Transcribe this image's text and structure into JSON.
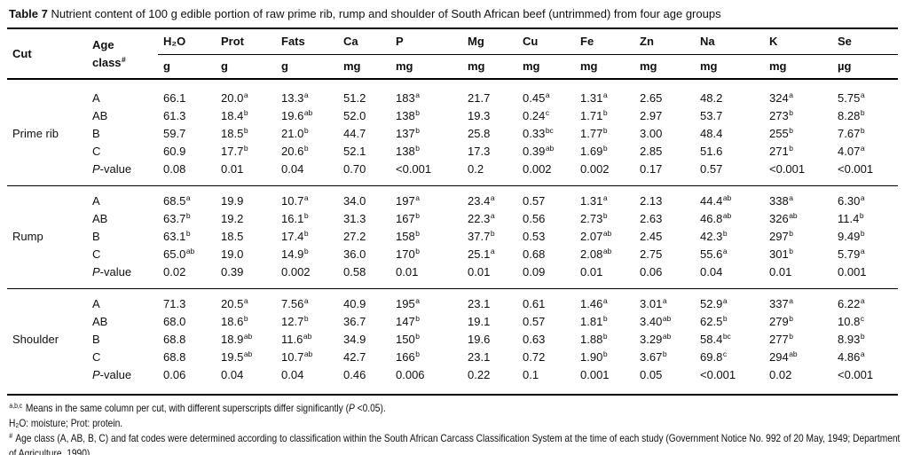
{
  "page": {
    "title_label": "Table 7",
    "title_text": " Nutrient content of 100 g edible portion of raw prime rib, rump and shoulder of South African beef (untrimmed) from four age groups"
  },
  "table": {
    "cut_header": "Cut",
    "age_header": {
      "line1": "Age",
      "line2": "class",
      "sup": "#"
    },
    "pvalue_label": {
      "italic": "P",
      "rest": "-value"
    },
    "nutrient_columns": [
      {
        "key": "h2o",
        "label": "H₂O",
        "unit": "g"
      },
      {
        "key": "prot",
        "label": "Prot",
        "unit": "g"
      },
      {
        "key": "fats",
        "label": "Fats",
        "unit": "g"
      },
      {
        "key": "ca",
        "label": "Ca",
        "unit": "mg"
      },
      {
        "key": "p",
        "label": "P",
        "unit": "mg"
      },
      {
        "key": "mg",
        "label": "Mg",
        "unit": "mg"
      },
      {
        "key": "cu",
        "label": "Cu",
        "unit": "mg"
      },
      {
        "key": "fe",
        "label": "Fe",
        "unit": "mg"
      },
      {
        "key": "zn",
        "label": "Zn",
        "unit": "mg"
      },
      {
        "key": "na",
        "label": "Na",
        "unit": "mg"
      },
      {
        "key": "k",
        "label": "K",
        "unit": "mg"
      },
      {
        "key": "se",
        "label": "Se",
        "unit": "µg"
      }
    ],
    "groups": [
      {
        "cut": "Prime rib",
        "rows": [
          {
            "age": "A",
            "values": [
              [
                "66.1",
                ""
              ],
              [
                "20.0",
                "a"
              ],
              [
                "13.3",
                "a"
              ],
              [
                "51.2",
                ""
              ],
              [
                "183",
                "a"
              ],
              [
                "21.7",
                ""
              ],
              [
                "0.45",
                "a"
              ],
              [
                "1.31",
                "a"
              ],
              [
                "2.65",
                ""
              ],
              [
                "48.2",
                ""
              ],
              [
                "324",
                "a"
              ],
              [
                "5.75",
                "a"
              ]
            ]
          },
          {
            "age": "AB",
            "values": [
              [
                "61.3",
                ""
              ],
              [
                "18.4",
                "b"
              ],
              [
                "19.6",
                "ab"
              ],
              [
                "52.0",
                ""
              ],
              [
                "138",
                "b"
              ],
              [
                "19.3",
                ""
              ],
              [
                "0.24",
                "c"
              ],
              [
                "1.71",
                "b"
              ],
              [
                "2.97",
                ""
              ],
              [
                "53.7",
                ""
              ],
              [
                "273",
                "b"
              ],
              [
                "8.28",
                "b"
              ]
            ]
          },
          {
            "age": "B",
            "values": [
              [
                "59.7",
                ""
              ],
              [
                "18.5",
                "b"
              ],
              [
                "21.0",
                "b"
              ],
              [
                "44.7",
                ""
              ],
              [
                "137",
                "b"
              ],
              [
                "25.8",
                ""
              ],
              [
                "0.33",
                "bc"
              ],
              [
                "1.77",
                "b"
              ],
              [
                "3.00",
                ""
              ],
              [
                "48.4",
                ""
              ],
              [
                "255",
                "b"
              ],
              [
                "7.67",
                "b"
              ]
            ]
          },
          {
            "age": "C",
            "values": [
              [
                "60.9",
                ""
              ],
              [
                "17.7",
                "b"
              ],
              [
                "20.6",
                "b"
              ],
              [
                "52.1",
                ""
              ],
              [
                "138",
                "b"
              ],
              [
                "17.3",
                ""
              ],
              [
                "0.39",
                "ab"
              ],
              [
                "1.69",
                "b"
              ],
              [
                "2.85",
                ""
              ],
              [
                "51.6",
                ""
              ],
              [
                "271",
                "b"
              ],
              [
                "4.07",
                "a"
              ]
            ]
          },
          {
            "age": "P-value",
            "pvalue": true,
            "values": [
              [
                "0.08",
                ""
              ],
              [
                "0.01",
                ""
              ],
              [
                "0.04",
                ""
              ],
              [
                "0.70",
                ""
              ],
              [
                "<0.001",
                ""
              ],
              [
                "0.2",
                ""
              ],
              [
                "0.002",
                ""
              ],
              [
                "0.002",
                ""
              ],
              [
                "0.17",
                ""
              ],
              [
                "0.57",
                ""
              ],
              [
                "<0.001",
                ""
              ],
              [
                "<0.001",
                ""
              ]
            ]
          }
        ]
      },
      {
        "cut": "Rump",
        "rows": [
          {
            "age": "A",
            "values": [
              [
                "68.5",
                "a"
              ],
              [
                "19.9",
                ""
              ],
              [
                "10.7",
                "a"
              ],
              [
                "34.0",
                ""
              ],
              [
                "197",
                "a"
              ],
              [
                "23.4",
                "a"
              ],
              [
                "0.57",
                ""
              ],
              [
                "1.31",
                "a"
              ],
              [
                "2.13",
                ""
              ],
              [
                "44.4",
                "ab"
              ],
              [
                "338",
                "a"
              ],
              [
                "6.30",
                "a"
              ]
            ]
          },
          {
            "age": "AB",
            "values": [
              [
                "63.7",
                "b"
              ],
              [
                "19.2",
                ""
              ],
              [
                "16.1",
                "b"
              ],
              [
                "31.3",
                ""
              ],
              [
                "167",
                "b"
              ],
              [
                "22.3",
                "a"
              ],
              [
                "0.56",
                ""
              ],
              [
                "2.73",
                "b"
              ],
              [
                "2.63",
                ""
              ],
              [
                "46.8",
                "ab"
              ],
              [
                "326",
                "ab"
              ],
              [
                "11.4",
                "b"
              ]
            ]
          },
          {
            "age": "B",
            "values": [
              [
                "63.1",
                "b"
              ],
              [
                "18.5",
                ""
              ],
              [
                "17.4",
                "b"
              ],
              [
                "27.2",
                ""
              ],
              [
                "158",
                "b"
              ],
              [
                "37.7",
                "b"
              ],
              [
                "0.53",
                ""
              ],
              [
                "2.07",
                "ab"
              ],
              [
                "2.45",
                ""
              ],
              [
                "42.3",
                "b"
              ],
              [
                "297",
                "b"
              ],
              [
                "9.49",
                "b"
              ]
            ]
          },
          {
            "age": "C",
            "values": [
              [
                "65.0",
                "ab"
              ],
              [
                "19.0",
                ""
              ],
              [
                "14.9",
                "b"
              ],
              [
                "36.0",
                ""
              ],
              [
                "170",
                "b"
              ],
              [
                "25.1",
                "a"
              ],
              [
                "0.68",
                ""
              ],
              [
                "2.08",
                "ab"
              ],
              [
                "2.75",
                ""
              ],
              [
                "55.6",
                "a"
              ],
              [
                "301",
                "b"
              ],
              [
                "5.79",
                "a"
              ]
            ]
          },
          {
            "age": "P-value",
            "pvalue": true,
            "values": [
              [
                "0.02",
                ""
              ],
              [
                "0.39",
                ""
              ],
              [
                "0.002",
                ""
              ],
              [
                "0.58",
                ""
              ],
              [
                "0.01",
                ""
              ],
              [
                "0.01",
                ""
              ],
              [
                "0.09",
                ""
              ],
              [
                "0.01",
                ""
              ],
              [
                "0.06",
                ""
              ],
              [
                "0.04",
                ""
              ],
              [
                "0.01",
                ""
              ],
              [
                "0.001",
                ""
              ]
            ]
          }
        ]
      },
      {
        "cut": "Shoulder",
        "rows": [
          {
            "age": "A",
            "values": [
              [
                "71.3",
                ""
              ],
              [
                "20.5",
                "a"
              ],
              [
                "7.56",
                "a"
              ],
              [
                "40.9",
                ""
              ],
              [
                "195",
                "a"
              ],
              [
                "23.1",
                ""
              ],
              [
                "0.61",
                ""
              ],
              [
                "1.46",
                "a"
              ],
              [
                "3.01",
                "a"
              ],
              [
                "52.9",
                "a"
              ],
              [
                "337",
                "a"
              ],
              [
                "6.22",
                "a"
              ]
            ]
          },
          {
            "age": "AB",
            "values": [
              [
                "68.0",
                ""
              ],
              [
                "18.6",
                "b"
              ],
              [
                "12.7",
                "b"
              ],
              [
                "36.7",
                ""
              ],
              [
                "147",
                "b"
              ],
              [
                "19.1",
                ""
              ],
              [
                "0.57",
                ""
              ],
              [
                "1.81",
                "b"
              ],
              [
                "3.40",
                "ab"
              ],
              [
                "62.5",
                "b"
              ],
              [
                "279",
                "b"
              ],
              [
                "10.8",
                "c"
              ]
            ]
          },
          {
            "age": "B",
            "values": [
              [
                "68.8",
                ""
              ],
              [
                "18.9",
                "ab"
              ],
              [
                "11.6",
                "ab"
              ],
              [
                "34.9",
                ""
              ],
              [
                "150",
                "b"
              ],
              [
                "19.6",
                ""
              ],
              [
                "0.63",
                ""
              ],
              [
                "1.88",
                "b"
              ],
              [
                "3.29",
                "ab"
              ],
              [
                "58.4",
                "bc"
              ],
              [
                "277",
                "b"
              ],
              [
                "8.93",
                "b"
              ]
            ]
          },
          {
            "age": "C",
            "values": [
              [
                "68.8",
                ""
              ],
              [
                "19.5",
                "ab"
              ],
              [
                "10.7",
                "ab"
              ],
              [
                "42.7",
                ""
              ],
              [
                "166",
                "b"
              ],
              [
                "23.1",
                ""
              ],
              [
                "0.72",
                ""
              ],
              [
                "1.90",
                "b"
              ],
              [
                "3.67",
                "b"
              ],
              [
                "69.8",
                "c"
              ],
              [
                "294",
                "ab"
              ],
              [
                "4.86",
                "a"
              ]
            ]
          },
          {
            "age": "P-value",
            "pvalue": true,
            "values": [
              [
                "0.06",
                ""
              ],
              [
                "0.04",
                ""
              ],
              [
                "0.04",
                ""
              ],
              [
                "0.46",
                ""
              ],
              [
                "0.006",
                ""
              ],
              [
                "0.22",
                ""
              ],
              [
                "0.1",
                ""
              ],
              [
                "0.001",
                ""
              ],
              [
                "0.05",
                ""
              ],
              [
                "<0.001",
                ""
              ],
              [
                "0.02",
                ""
              ],
              [
                "<0.001",
                ""
              ]
            ]
          }
        ]
      }
    ]
  },
  "footnotes": [
    {
      "segments": [
        {
          "t": "a,b,c",
          "s": "sup"
        },
        {
          "t": " Means in the same column per cut, with different superscripts differ significantly (",
          "s": ""
        },
        {
          "t": "P",
          "s": "i"
        },
        {
          "t": " <0.05).",
          "s": ""
        }
      ]
    },
    {
      "segments": [
        {
          "t": "H₂O: moisture; Prot: protein.",
          "s": ""
        }
      ]
    },
    {
      "segments": [
        {
          "t": "#",
          "s": "sup"
        },
        {
          "t": " Age class (A, AB, B, C) and fat codes were determined according to classification within the South African Carcass Classification System at the time of each study (Government Notice No. 992 of 20 May, 1949; Department of Agriculture, 1990).",
          "s": ""
        }
      ]
    }
  ]
}
